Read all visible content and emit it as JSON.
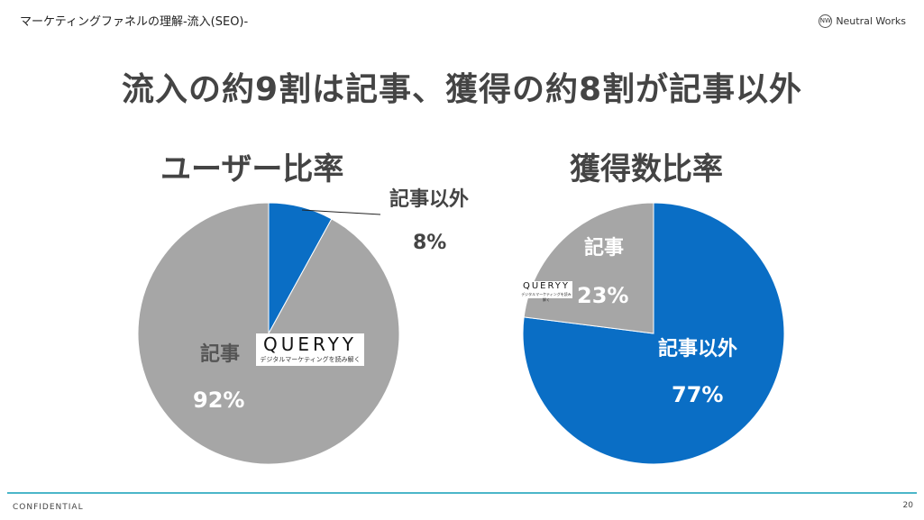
{
  "header": {
    "title": "マーケティングファネルの理解-流入(SEO)-",
    "brand": "Neutral Works"
  },
  "slide_title": "流入の約9割は記事、獲得の約8割が記事以外",
  "queryy": {
    "name": "QUERYY",
    "tagline": "デジタルマーケティングを読み解く"
  },
  "footer": {
    "confidential": "CONFIDENTIAL",
    "page": "20"
  },
  "colors": {
    "blue": "#0a6ec5",
    "gray": "#a6a6a6",
    "rule": "#4bb6c9"
  },
  "chart_data": [
    {
      "type": "pie",
      "title": "ユーザー比率",
      "slices": [
        {
          "label": "記事以外",
          "value": 8,
          "display": "8%",
          "color": "#0a6ec5"
        },
        {
          "label": "記事",
          "value": 92,
          "display": "92%",
          "color": "#a6a6a6"
        }
      ]
    },
    {
      "type": "pie",
      "title": "獲得数比率",
      "slices": [
        {
          "label": "記事以外",
          "value": 77,
          "display": "77%",
          "color": "#0a6ec5"
        },
        {
          "label": "記事",
          "value": 23,
          "display": "23%",
          "color": "#a6a6a6"
        }
      ]
    }
  ]
}
